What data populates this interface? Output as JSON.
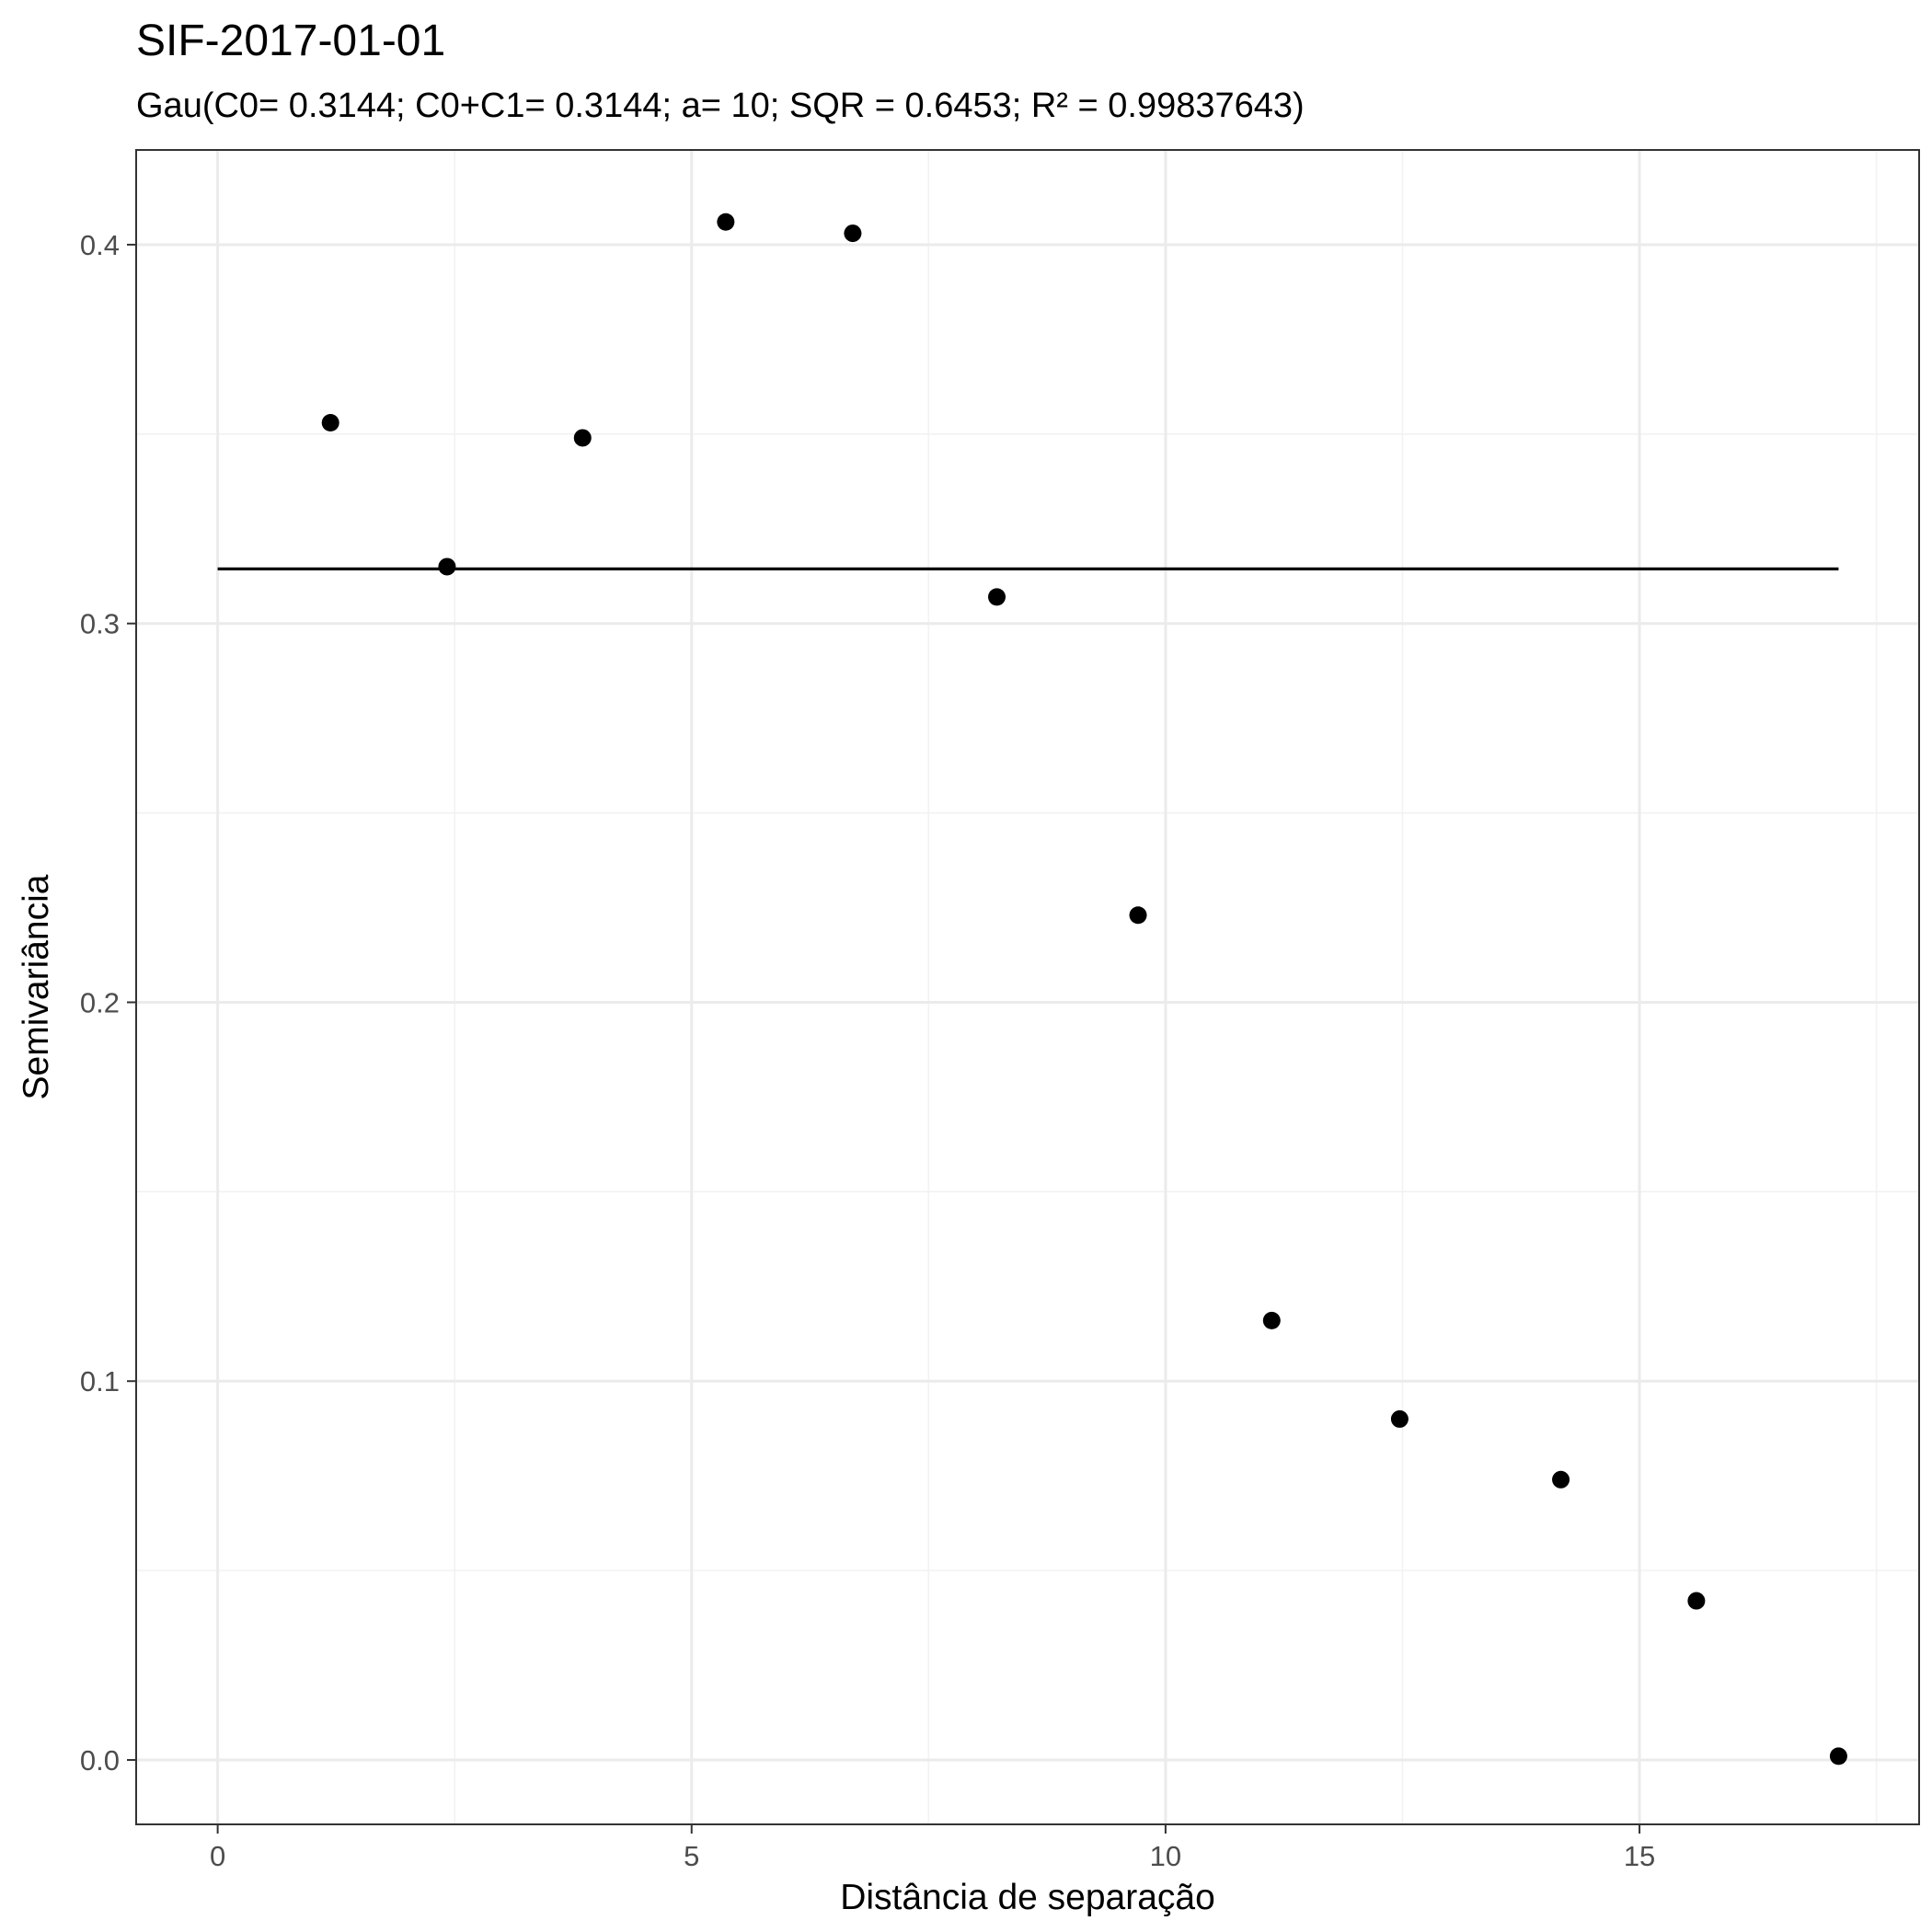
{
  "chart_data": {
    "type": "scatter",
    "title": "SIF-2017-01-01",
    "subtitle": "Gau(C0= 0.3144; C0+C1= 0.3144; a= 10; SQR = 0.6453; R² = 0.99837643)",
    "xlabel": "Distância de separação",
    "ylabel": "Semivariância",
    "xlim": [
      -0.86,
      17.95
    ],
    "ylim": [
      -0.017,
      0.425
    ],
    "x_ticks": [
      0,
      5,
      10,
      15
    ],
    "x_tick_labels": [
      "0",
      "5",
      "10",
      "15"
    ],
    "y_ticks": [
      0.0,
      0.1,
      0.2,
      0.3,
      0.4
    ],
    "y_tick_labels": [
      "0.0",
      "0.1",
      "0.2",
      "0.3",
      "0.4"
    ],
    "x_minor": [
      2.5,
      7.5,
      12.5,
      17.5
    ],
    "y_minor": [
      0.05,
      0.15,
      0.25,
      0.35
    ],
    "grid": true,
    "points": {
      "x": [
        1.19,
        2.42,
        3.85,
        5.36,
        6.7,
        8.22,
        9.71,
        11.12,
        12.47,
        14.17,
        15.6,
        17.1
      ],
      "y": [
        0.353,
        0.315,
        0.349,
        0.406,
        0.403,
        0.307,
        0.223,
        0.116,
        0.09,
        0.074,
        0.042,
        0.001
      ]
    },
    "fit_line": {
      "x": [
        0,
        17.1
      ],
      "y": [
        0.3144,
        0.3144
      ]
    }
  }
}
